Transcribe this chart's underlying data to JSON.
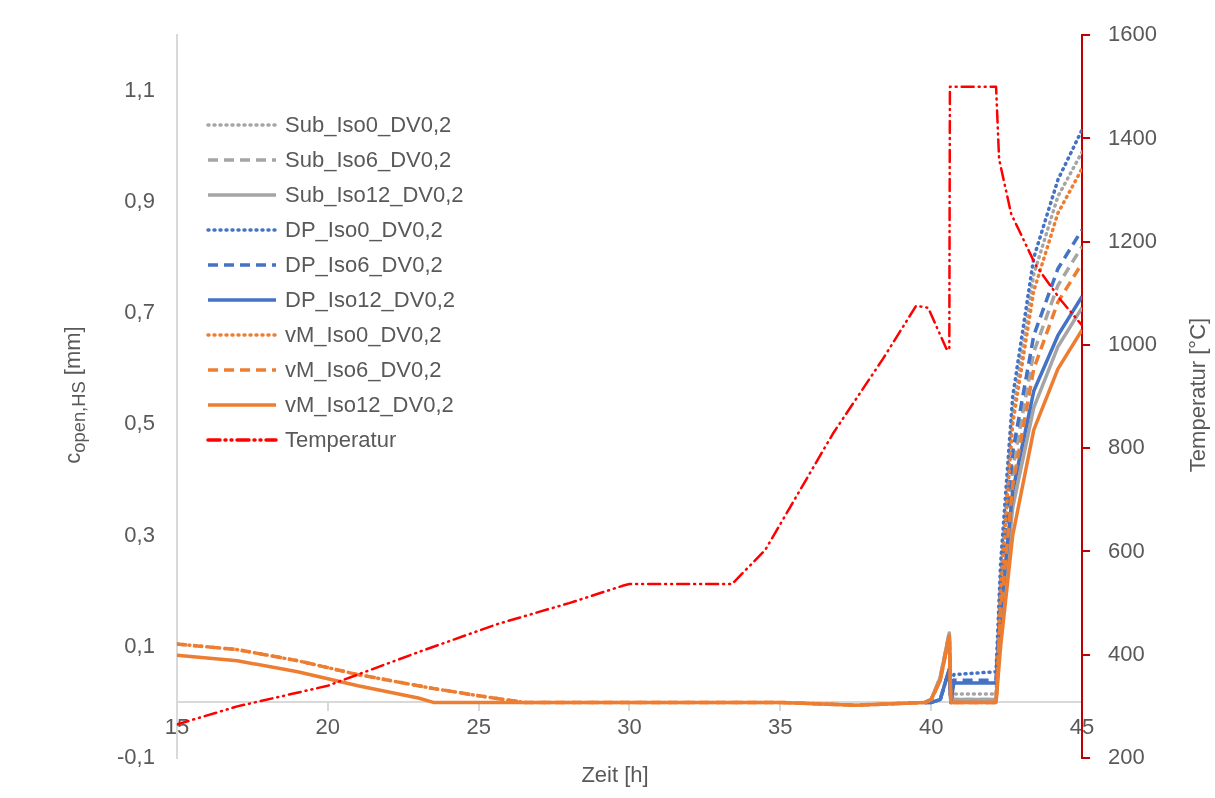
{
  "chart_data": {
    "type": "line",
    "xlabel": "Zeit [h]",
    "ylabel": "c$_{open,HS}$ [mm]",
    "y2label": "Temperatur [°C]",
    "x": [
      15,
      17,
      19,
      21,
      23,
      23.5,
      25,
      26.5,
      30,
      35,
      37.5,
      39.8,
      40.0,
      40.3,
      40.6,
      40.65,
      40.75,
      42.1,
      42.15,
      42.3,
      42.7,
      43.4,
      44.2,
      45
    ],
    "xlim": [
      15,
      45
    ],
    "xticks": [
      15,
      20,
      25,
      30,
      35,
      40,
      45
    ],
    "ylim": [
      -0.1,
      1.2
    ],
    "yticks": [
      {
        "value": -0.1,
        "label": "-0,1"
      },
      {
        "value": 0.1,
        "label": "0,1"
      },
      {
        "value": 0.3,
        "label": "0,3"
      },
      {
        "value": 0.5,
        "label": "0,5"
      },
      {
        "value": 0.7,
        "label": "0,7"
      },
      {
        "value": 0.9,
        "label": "0,9"
      },
      {
        "value": 1.1,
        "label": "1,1"
      }
    ],
    "y2lim": [
      200,
      1600
    ],
    "y2ticks": [
      200,
      400,
      600,
      800,
      1000,
      1200,
      1400,
      1600
    ],
    "legend": "top left",
    "series": [
      {
        "name": "Sub_Iso0_DV0,2",
        "color": "#a5a5a5",
        "line_style": "dotted",
        "values": [
          null,
          null,
          null,
          null,
          null,
          null,
          null,
          null,
          null,
          null,
          null,
          0,
          0.005,
          0.045,
          0.125,
          0,
          0.015,
          0.015,
          0.015,
          0.22,
          0.52,
          0.77,
          0.91,
          0.99
        ]
      },
      {
        "name": "Sub_Iso6_DV0,2",
        "color": "#a5a5a5",
        "line_style": "dashed",
        "values": [
          null,
          null,
          null,
          null,
          null,
          null,
          null,
          null,
          null,
          null,
          null,
          0,
          0.005,
          0.045,
          0.125,
          0,
          0.005,
          0.005,
          0.005,
          0.18,
          0.42,
          0.63,
          0.75,
          0.82
        ]
      },
      {
        "name": "Sub_Iso12_DV0,2",
        "color": "#a5a5a5",
        "line_style": "solid",
        "values": [
          null,
          null,
          null,
          null,
          null,
          null,
          null,
          null,
          null,
          null,
          null,
          0,
          0.005,
          0.045,
          0.125,
          0,
          0.005,
          0.005,
          0.005,
          0.13,
          0.35,
          0.53,
          0.64,
          0.71
        ]
      },
      {
        "name": "DP_Iso0_DV0,2",
        "color": "#4472c4",
        "line_style": "dotted",
        "values": [
          null,
          null,
          null,
          null,
          null,
          null,
          null,
          null,
          null,
          null,
          null,
          0,
          0,
          0.005,
          0.06,
          0,
          0.05,
          0.055,
          0.055,
          0.25,
          0.55,
          0.8,
          0.94,
          1.03
        ]
      },
      {
        "name": "DP_Iso6_DV0,2",
        "color": "#4472c4",
        "line_style": "dashed",
        "values": [
          null,
          null,
          null,
          null,
          null,
          null,
          null,
          null,
          null,
          null,
          null,
          0,
          0,
          0.005,
          0.06,
          0,
          0.04,
          0.04,
          0.04,
          0.2,
          0.45,
          0.66,
          0.78,
          0.85
        ]
      },
      {
        "name": "DP_Iso12_DV0,2",
        "color": "#4472c4",
        "line_style": "solid",
        "values": [
          null,
          null,
          null,
          null,
          null,
          null,
          null,
          null,
          null,
          null,
          null,
          0,
          0,
          0.005,
          0.06,
          0,
          0.035,
          0.035,
          0.035,
          0.16,
          0.38,
          0.56,
          0.66,
          0.73
        ]
      },
      {
        "name": "vM_Iso0_DV0,2",
        "color": "#ed7d31",
        "line_style": "dotted",
        "values": [
          0.105,
          0.095,
          0.075,
          0.05,
          0.03,
          0.025,
          0.012,
          0,
          0,
          0,
          -0.005,
          0,
          0.005,
          0.04,
          0.12,
          0,
          0,
          0,
          0,
          0.2,
          0.5,
          0.74,
          0.88,
          0.96
        ]
      },
      {
        "name": "vM_Iso6_DV0,2",
        "color": "#ed7d31",
        "line_style": "dashed",
        "values": [
          0.105,
          0.095,
          0.075,
          0.05,
          0.03,
          0.025,
          0.012,
          0,
          0,
          0,
          -0.005,
          0,
          0.005,
          0.04,
          0.12,
          0,
          0,
          0,
          0,
          0.16,
          0.39,
          0.6,
          0.72,
          0.79
        ]
      },
      {
        "name": "vM_Iso12_DV0,2",
        "color": "#ed7d31",
        "line_style": "solid",
        "values": [
          0.085,
          0.075,
          0.055,
          0.03,
          0.008,
          0,
          0,
          0,
          0,
          0,
          -0.005,
          0,
          0.005,
          0.04,
          0.12,
          0,
          0,
          0,
          0,
          0.1,
          0.3,
          0.49,
          0.6,
          0.67
        ]
      },
      {
        "name": "Temperatur",
        "color": "#ff0000",
        "line_style": "dashdot",
        "axis": "y2",
        "x": [
          15,
          17,
          20,
          23,
          25.6,
          28,
          29.8,
          30,
          33.4,
          34.5,
          36.75,
          38.4,
          39.5,
          39.9,
          40.5,
          40.6,
          40.62,
          42.15,
          42.25,
          42.65,
          43.46,
          44.28,
          45
        ],
        "values": [
          265,
          300,
          340,
          405,
          459,
          500,
          534,
          537,
          537,
          603,
          829,
          973,
          1076,
          1072,
          993,
          990,
          1500,
          1500,
          1360,
          1254,
          1155,
          1088,
          1038
        ]
      }
    ]
  }
}
